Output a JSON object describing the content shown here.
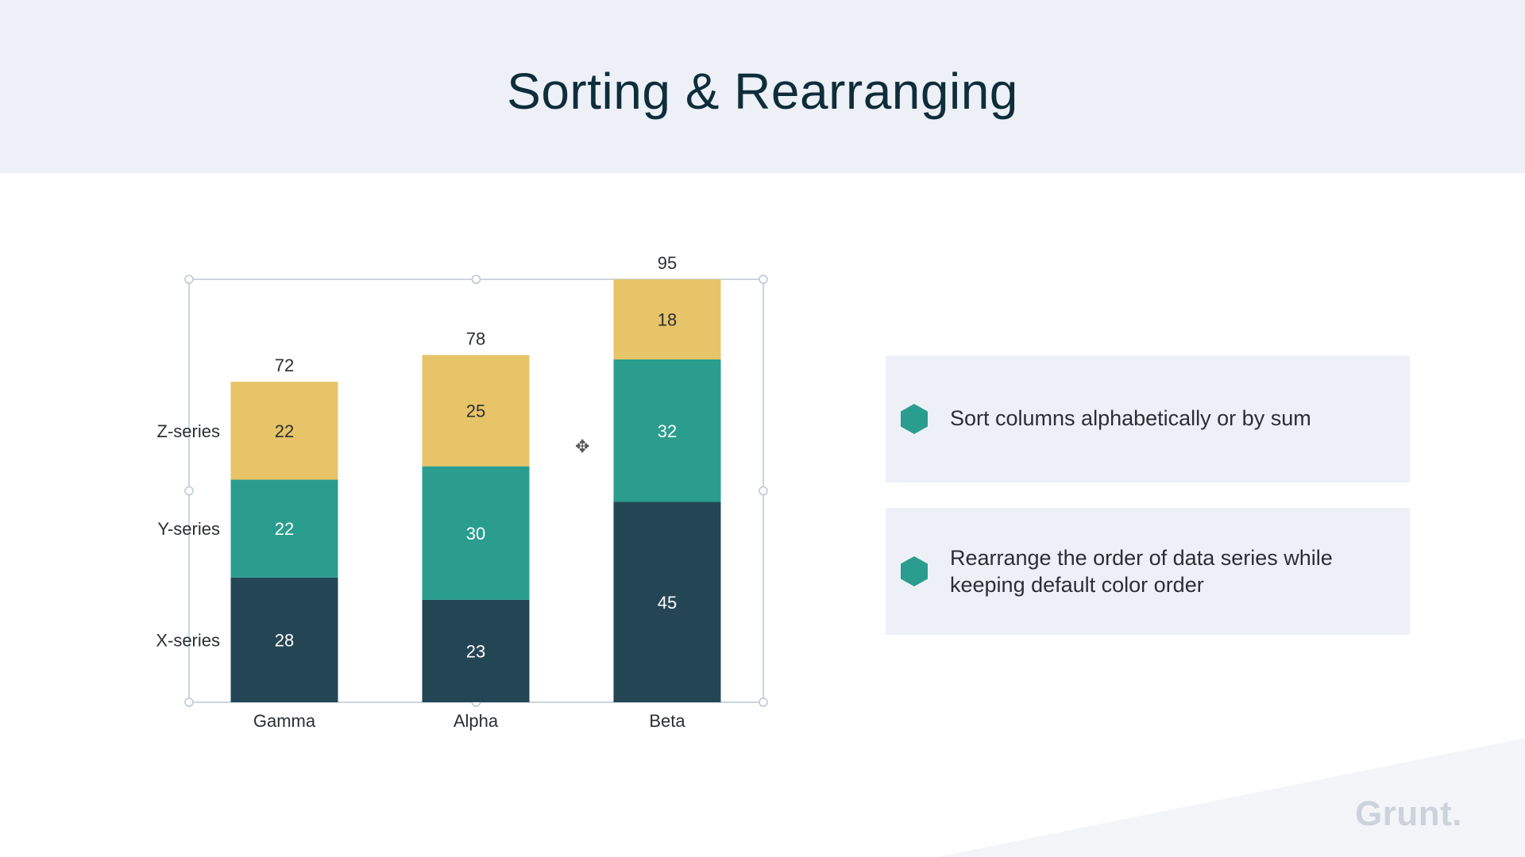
{
  "header": {
    "title": "Sorting & Rearranging"
  },
  "cards": [
    {
      "text": "Sort columns alphabetically or by sum"
    },
    {
      "text": "Rearrange the order of data series while keeping default color order"
    }
  ],
  "logo": {
    "text": "Grunt."
  },
  "colors": {
    "x_series": "#244654",
    "y_series": "#2a9d8f",
    "z_series": "#e8c468",
    "header_bg": "#edf1f7",
    "bullet": "#2a9d8f"
  },
  "chart_data": {
    "type": "bar",
    "stacked": true,
    "categories": [
      "Gamma",
      "Alpha",
      "Beta"
    ],
    "series": [
      {
        "name": "X-series",
        "values": [
          28,
          23,
          45
        ]
      },
      {
        "name": "Y-series",
        "values": [
          22,
          30,
          32
        ]
      },
      {
        "name": "Z-series",
        "values": [
          22,
          25,
          18
        ]
      }
    ],
    "totals": [
      72,
      78,
      95
    ],
    "ylim": [
      0,
      95
    ],
    "legend": "left",
    "grid": false
  }
}
